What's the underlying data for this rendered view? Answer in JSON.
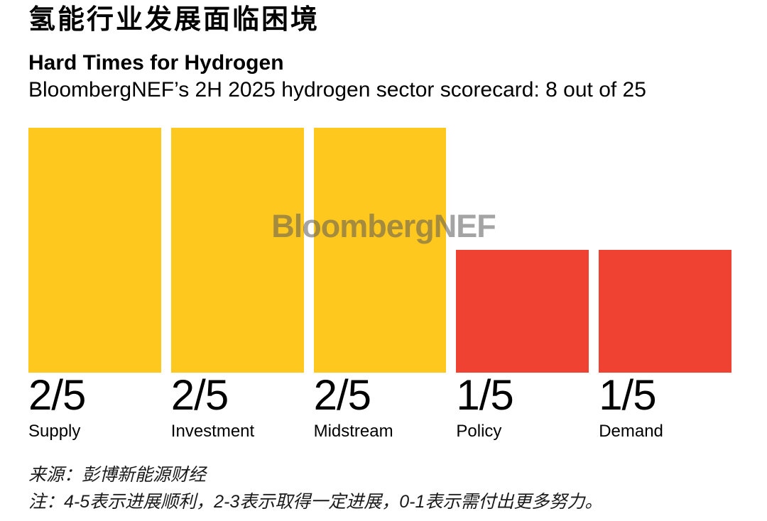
{
  "header": {
    "chinese_title": "氢能行业发展面临困境",
    "title": "Hard Times for Hydrogen",
    "subtitle": "BloombergNEF’s 2H 2025 hydrogen sector scorecard: 8 out of 25"
  },
  "watermark": {
    "text": "BloombergNEF"
  },
  "chart_data": {
    "type": "bar",
    "title": "Hard Times for Hydrogen",
    "subtitle": "BloombergNEF’s 2H 2025 hydrogen sector scorecard: 8 out of 25",
    "categories": [
      "Supply",
      "Investment",
      "Midstream",
      "Policy",
      "Demand"
    ],
    "values": [
      2,
      2,
      2,
      1,
      1
    ],
    "score_max": 5,
    "score_labels": [
      "2/5",
      "2/5",
      "2/5",
      "1/5",
      "1/5"
    ],
    "bar_colors": [
      "#FFC81E",
      "#FFC81E",
      "#FFC81E",
      "#EF4233",
      "#EF4233"
    ],
    "xlabel": "",
    "ylabel": "",
    "ylim": [
      0,
      2
    ],
    "grid": false,
    "legend": false
  },
  "colors": {
    "yellow": "#FFC81E",
    "red": "#EF4233",
    "watermark_gray": "rgba(90,90,90,0.55)"
  },
  "footer": {
    "source": "来源：彭博新能源财经",
    "note": "注：4-5表示进展顺利，2-3表示取得一定进展，0-1表示需付出更多努力。"
  }
}
